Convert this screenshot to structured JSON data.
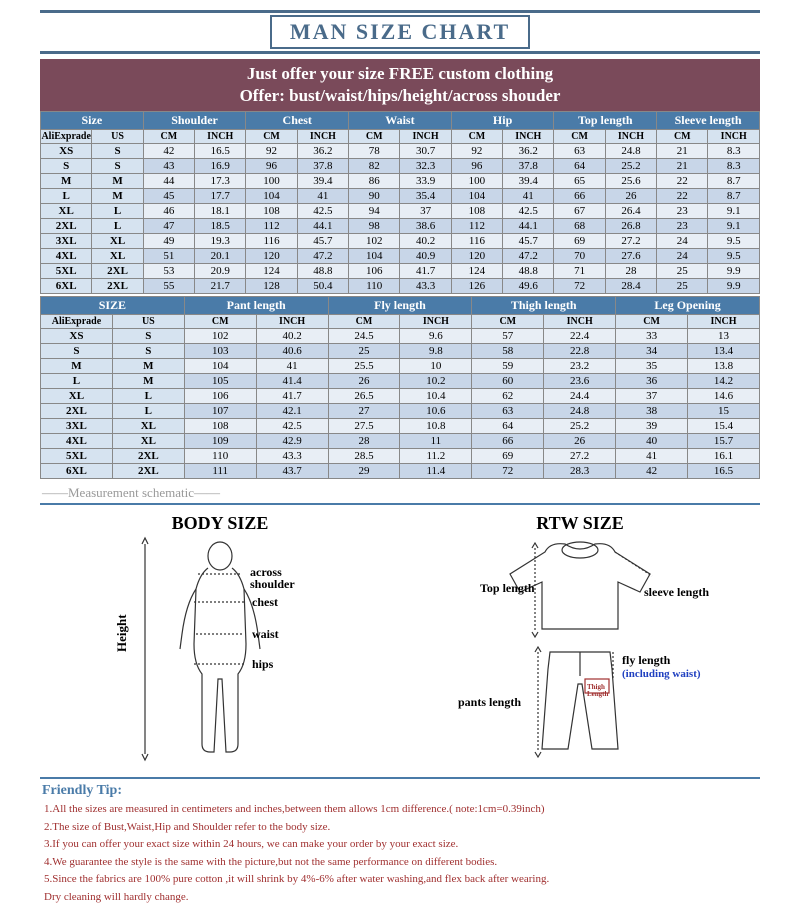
{
  "title": "MAN SIZE CHART",
  "offer_line1": "Just offer your size   FREE custom clothing",
  "offer_line2": "Offer: bust/waist/hips/height/across shouder",
  "colors": {
    "title_border": "#4a6b8a",
    "banner_bg": "#7a4a5a",
    "header_blue": "#4a7ba8",
    "sub_header": "#d6e3f0",
    "row_light": "#e8eef5",
    "row_dark": "#c8d6e8",
    "tip_text": "#a03030"
  },
  "table1": {
    "headers": [
      "Size",
      "Shoulder",
      "Chest",
      "Waist",
      "Hip",
      "Top length",
      "Sleeve length"
    ],
    "sub": [
      "AliExprade",
      "US",
      "CM",
      "INCH",
      "CM",
      "INCH",
      "CM",
      "INCH",
      "CM",
      "INCH",
      "CM",
      "INCH",
      "CM",
      "INCH"
    ],
    "rows": [
      [
        "XS",
        "S",
        "42",
        "16.5",
        "92",
        "36.2",
        "78",
        "30.7",
        "92",
        "36.2",
        "63",
        "24.8",
        "21",
        "8.3"
      ],
      [
        "S",
        "S",
        "43",
        "16.9",
        "96",
        "37.8",
        "82",
        "32.3",
        "96",
        "37.8",
        "64",
        "25.2",
        "21",
        "8.3"
      ],
      [
        "M",
        "M",
        "44",
        "17.3",
        "100",
        "39.4",
        "86",
        "33.9",
        "100",
        "39.4",
        "65",
        "25.6",
        "22",
        "8.7"
      ],
      [
        "L",
        "M",
        "45",
        "17.7",
        "104",
        "41",
        "90",
        "35.4",
        "104",
        "41",
        "66",
        "26",
        "22",
        "8.7"
      ],
      [
        "XL",
        "L",
        "46",
        "18.1",
        "108",
        "42.5",
        "94",
        "37",
        "108",
        "42.5",
        "67",
        "26.4",
        "23",
        "9.1"
      ],
      [
        "2XL",
        "L",
        "47",
        "18.5",
        "112",
        "44.1",
        "98",
        "38.6",
        "112",
        "44.1",
        "68",
        "26.8",
        "23",
        "9.1"
      ],
      [
        "3XL",
        "XL",
        "49",
        "19.3",
        "116",
        "45.7",
        "102",
        "40.2",
        "116",
        "45.7",
        "69",
        "27.2",
        "24",
        "9.5"
      ],
      [
        "4XL",
        "XL",
        "51",
        "20.1",
        "120",
        "47.2",
        "104",
        "40.9",
        "120",
        "47.2",
        "70",
        "27.6",
        "24",
        "9.5"
      ],
      [
        "5XL",
        "2XL",
        "53",
        "20.9",
        "124",
        "48.8",
        "106",
        "41.7",
        "124",
        "48.8",
        "71",
        "28",
        "25",
        "9.9"
      ],
      [
        "6XL",
        "2XL",
        "55",
        "21.7",
        "128",
        "50.4",
        "110",
        "43.3",
        "126",
        "49.6",
        "72",
        "28.4",
        "25",
        "9.9"
      ]
    ]
  },
  "table2": {
    "headers": [
      "SIZE",
      "Pant  length",
      "Fly length",
      "Thigh length",
      "Leg Opening"
    ],
    "sub": [
      "AliExprade",
      "US",
      "CM",
      "INCH",
      "CM",
      "INCH",
      "CM",
      "INCH",
      "CM",
      "INCH"
    ],
    "rows": [
      [
        "XS",
        "S",
        "102",
        "40.2",
        "24.5",
        "9.6",
        "57",
        "22.4",
        "33",
        "13"
      ],
      [
        "S",
        "S",
        "103",
        "40.6",
        "25",
        "9.8",
        "58",
        "22.8",
        "34",
        "13.4"
      ],
      [
        "M",
        "M",
        "104",
        "41",
        "25.5",
        "10",
        "59",
        "23.2",
        "35",
        "13.8"
      ],
      [
        "L",
        "M",
        "105",
        "41.4",
        "26",
        "10.2",
        "60",
        "23.6",
        "36",
        "14.2"
      ],
      [
        "XL",
        "L",
        "106",
        "41.7",
        "26.5",
        "10.4",
        "62",
        "24.4",
        "37",
        "14.6"
      ],
      [
        "2XL",
        "L",
        "107",
        "42.1",
        "27",
        "10.6",
        "63",
        "24.8",
        "38",
        "15"
      ],
      [
        "3XL",
        "XL",
        "108",
        "42.5",
        "27.5",
        "10.8",
        "64",
        "25.2",
        "39",
        "15.4"
      ],
      [
        "4XL",
        "XL",
        "109",
        "42.9",
        "28",
        "11",
        "66",
        "26",
        "40",
        "15.7"
      ],
      [
        "5XL",
        "2XL",
        "110",
        "43.3",
        "28.5",
        "11.2",
        "69",
        "27.2",
        "41",
        "16.1"
      ],
      [
        "6XL",
        "2XL",
        "111",
        "43.7",
        "29",
        "11.4",
        "72",
        "28.3",
        "42",
        "16.5"
      ]
    ]
  },
  "schematic_label": "——Measurement schematic——",
  "body_size_title": "BODY SIZE",
  "rtw_size_title": "RTW SIZE",
  "labels": {
    "height": "Height",
    "across_shoulder": "across shoulder",
    "chest": "chest",
    "waist": "waist",
    "hips": "hips",
    "top_length": "Top length",
    "sleeve_length": "sleeve length",
    "fly_length": "fly length",
    "including_waist": "(including waist)",
    "pants_length": "pants length",
    "thigh_length": "Thigh Length"
  },
  "tips_title": "Friendly Tip:",
  "tips": [
    "1.All the sizes are measured in centimeters and inches,between them allows 1cm difference.( note:1cm=0.39inch)",
    "2.The size of Bust,Waist,Hip and Shoulder refer to the body size.",
    "3.If you can offer your exact size within 24 hours, we can make your order by your exact size.",
    "4.We guarantee the style is the same with the picture,but not the same performance on different bodies.",
    "5.Since the fabrics are 100% pure cotton ,it will shrink by 4%-6% after water washing,and flex back after wearing.",
    "   Dry cleaning will hardly change."
  ]
}
